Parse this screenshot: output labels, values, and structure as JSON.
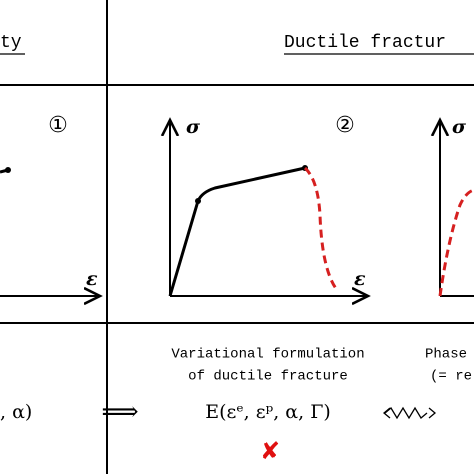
{
  "header": {
    "left": "ty",
    "middle": "Ductile fractur"
  },
  "panels": [
    {
      "label": "①",
      "x_axis": "ε"
    },
    {
      "label": "②",
      "y_axis": "σ",
      "x_axis": "ε"
    },
    {
      "y_axis": "σ"
    }
  ],
  "footer": {
    "left_formula": ", α)",
    "implies": "⟹",
    "middle_caption": [
      "Variational formulation",
      "of ductile fracture"
    ],
    "middle_formula": "E(εᵉ, εᵖ, α, Γ)",
    "middle_mark": "✘",
    "right_caption": [
      "Phase",
      "(= re"
    ]
  }
}
